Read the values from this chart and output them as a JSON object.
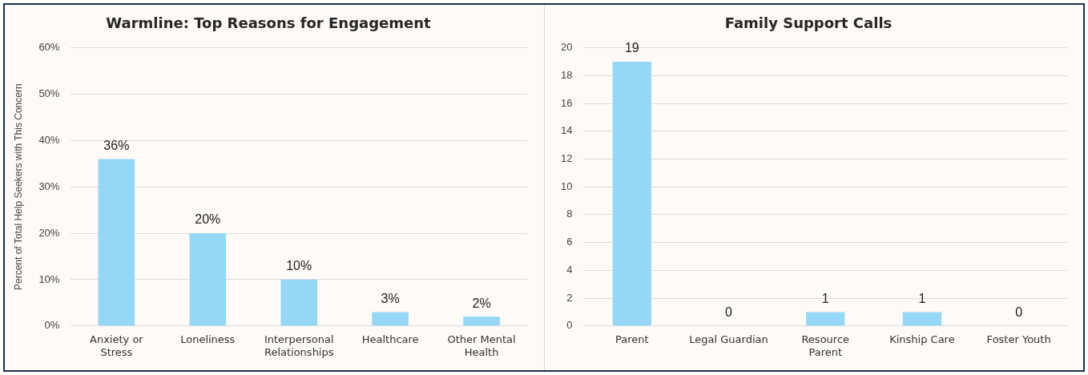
{
  "chart_data": [
    {
      "type": "bar",
      "title": "Warmline: Top Reasons for Engagement",
      "ylabel": "Percent of Total Help Seekers with This Concern",
      "categories": [
        "Anxiety or Stress",
        "Loneliness",
        "Interpersonal Relationships",
        "Healthcare",
        "Other Mental Health"
      ],
      "values": [
        36,
        20,
        10,
        3,
        2
      ],
      "value_labels": [
        "36%",
        "20%",
        "10%",
        "3%",
        "2%"
      ],
      "color": "#96d7f5",
      "ylim": [
        0,
        60
      ],
      "yticks": [
        {
          "value": 0,
          "label": "0%"
        },
        {
          "value": 10,
          "label": "10%"
        },
        {
          "value": 20,
          "label": "20%"
        },
        {
          "value": 30,
          "label": "30%"
        },
        {
          "value": 40,
          "label": "40%"
        },
        {
          "value": 50,
          "label": "50%"
        },
        {
          "value": 60,
          "label": "60%"
        }
      ],
      "grid": "y",
      "legend": false
    },
    {
      "type": "bar",
      "title": "Family Support Calls",
      "categories": [
        "Parent",
        "Legal Guardian",
        "Resource Parent",
        "Kinship Care",
        "Foster Youth"
      ],
      "values": [
        19,
        0,
        1,
        1,
        0
      ],
      "data_labels": true,
      "color": "#96d7f5",
      "ylim": [
        0,
        20
      ],
      "yticks": [
        0,
        2,
        4,
        6,
        8,
        10,
        12,
        14,
        16,
        18,
        20
      ],
      "grid": "y",
      "legend": false
    }
  ]
}
